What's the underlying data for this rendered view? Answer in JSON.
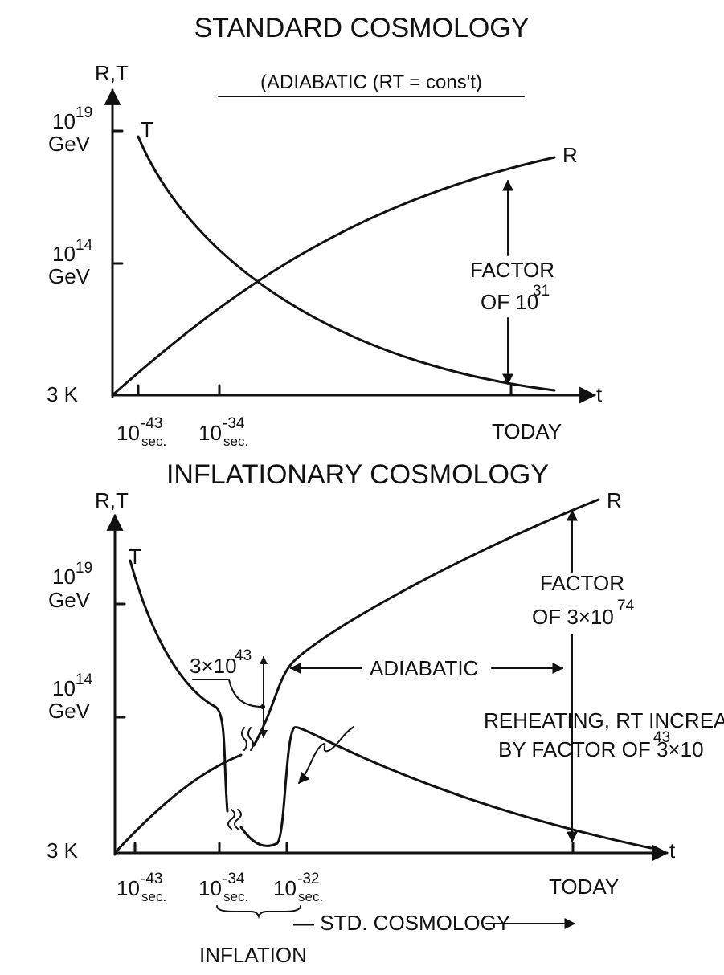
{
  "standard": {
    "title": "STANDARD COSMOLOGY",
    "subtitle": "(ADIABATIC (RT = cons't)",
    "y_axis_label": "R,T",
    "x_axis_label": "t",
    "y_labels": [
      {
        "base": "10",
        "exp": "19",
        "unit": "GeV"
      },
      {
        "base": "10",
        "exp": "14",
        "unit": "GeV"
      },
      {
        "text": "3 K"
      }
    ],
    "x_labels": [
      {
        "base": "10",
        "exp": "-43",
        "unit": "sec."
      },
      {
        "base": "10",
        "exp": "-34",
        "unit": "sec."
      },
      {
        "text": "TODAY"
      }
    ],
    "curve_labels": [
      "T",
      "R"
    ],
    "factor": {
      "line1": "FACTOR",
      "line2": "OF 10",
      "exp": "31"
    }
  },
  "inflationary": {
    "title": "INFLATIONARY COSMOLOGY",
    "y_axis_label": "R,T",
    "x_axis_label": "t",
    "y_labels": [
      {
        "base": "10",
        "exp": "19",
        "unit": "GeV"
      },
      {
        "base": "10",
        "exp": "14",
        "unit": "GeV"
      },
      {
        "text": "3 K"
      }
    ],
    "x_labels": [
      {
        "base": "10",
        "exp": "-43",
        "unit": "sec."
      },
      {
        "base": "10",
        "exp": "-34",
        "unit": "sec."
      },
      {
        "base": "10",
        "exp": "-32",
        "unit": "sec."
      },
      {
        "text": "TODAY"
      }
    ],
    "curve_labels": [
      "T",
      "R"
    ],
    "factor": {
      "line1": "FACTOR",
      "line2": "OF 3×10",
      "exp": "74"
    },
    "adiabatic": "ADIABATIC",
    "drop": {
      "base": "3×10",
      "exp": "43"
    },
    "reheating": {
      "line1": "REHEATING, RT INCREASES",
      "line2": "BY FACTOR OF 3×10",
      "exp": "43"
    },
    "std_cosmology": "— STD. COSMOLOGY",
    "inflation": "INFLATION"
  }
}
